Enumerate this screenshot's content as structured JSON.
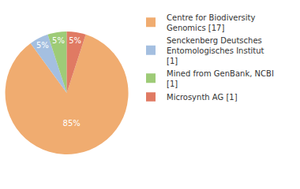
{
  "chart_data": {
    "type": "pie",
    "categories": [
      "Centre for Biodiversity Genomics [17]",
      "Senckenberg Deutsches Entomologisches Institut [1]",
      "Mined from GenBank, NCBI [1]",
      "Microsynth AG [1]"
    ],
    "values": [
      85,
      5,
      5,
      5
    ],
    "value_labels": [
      "85%",
      "5%",
      "5%",
      "5%"
    ],
    "colors": [
      "#f0ac70",
      "#a4bfe0",
      "#9ecb77",
      "#e07a63"
    ],
    "data_labels": true,
    "legend": "upper right"
  }
}
